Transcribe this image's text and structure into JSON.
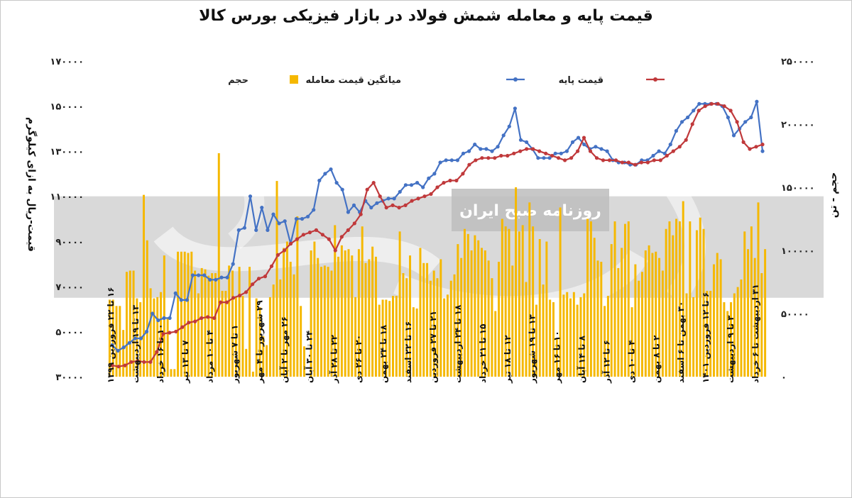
{
  "title": "قیمت پایه و معامله شمش فولاد در بازار فیزیکی بورس کالا",
  "watermark": "روزنامه صبح ایران",
  "colors": {
    "volume": "#F5B800",
    "avg_price": "#4472C4",
    "base_price": "#C0393B",
    "band": "#D9D9D9"
  },
  "chart_data": {
    "type": "bar+line",
    "title": "قیمت پایه و معامله شمش فولاد در بازار فیزیکی بورس کالا",
    "ylabel_left": "قیمت-ریال به ازای کیلوگرم",
    "ylabel_right": "حجم - تن",
    "ylim_left": [
      30000,
      170000
    ],
    "ylim_right": [
      0,
      250000
    ],
    "yticks_left": [
      "۱۷۰۰۰۰",
      "۱۵۰۰۰۰",
      "۱۳۰۰۰۰",
      "۱۱۰۰۰۰",
      "۹۰۰۰۰",
      "۷۰۰۰۰",
      "۵۰۰۰۰",
      "۳۰۰۰۰"
    ],
    "yticks_right": [
      "۲۵۰۰۰۰",
      "۲۰۰۰۰۰",
      "۱۵۰۰۰۰",
      "۱۰۰۰۰۰",
      "۵۰۰۰۰",
      "۰"
    ],
    "legend": {
      "position": "top",
      "items": [
        {
          "name": "قیمت پایه",
          "series": "base"
        },
        {
          "name": "میانگین قیمت معامله",
          "series": "avg"
        },
        {
          "name": "حجم",
          "series": "volume"
        }
      ]
    },
    "x_labels": [
      "۱۶ تا ۲۲ فروردین ۱۳۹۹",
      "۱۳ تا ۱۹ اردیبهشت",
      "۱۰ تا ۱۶ خرداد",
      "۷ تا ۱۳ تیر",
      "۴ تا ۱۰ مرداد",
      "۱ تا ۷ شهریور",
      "۲۹ شهریور تا ۴ مهر",
      "۲۶ مهر تا ۲ آبان",
      "۲۴ تا ۳۰ آبان",
      "۲۲ تا ۲۸ آذر",
      "۲۰ تا ۲۶ دی",
      "۱۸ تا ۲۴ بهمن",
      "۱۶ تا ۲۲ اسفند",
      "۲۱ تا ۲۷ فروردین",
      "۱۸ تا ۲۴ اردیبهشت",
      "۱۵ تا ۲۱ خرداد",
      "۱۲ تا ۱۸ تیر",
      "۱۳ تا ۱۹ شهریور",
      "۱۰ تا ۱۶ مهر",
      "۸ تا ۱۴ آبان",
      "۶ تا ۱۲ آذر",
      "۴ تا ۱۰ دی",
      "۲ تا ۸ بهمن",
      "۳۰ بهمن تا ۶ اسفند",
      "۶ تا ۱۲ فروردین ۱۴۰۱",
      "۳ تا ۹ اردیبهشت",
      "۳۱ اردیبهشت تا ۶ خرداد"
    ],
    "volume": [
      61000,
      61000,
      56000,
      56000,
      37000,
      83000,
      84000,
      84000,
      62000,
      59000,
      144000,
      108000,
      70000,
      62000,
      63000,
      67000,
      96000,
      47000,
      6000,
      6000,
      99000,
      99000,
      99000,
      98000,
      99000,
      84000,
      66000,
      86000,
      85000,
      80000,
      82000,
      82000,
      177000,
      68000,
      68000,
      88000,
      84000,
      63000,
      87000,
      64000,
      22000,
      87000,
      4000,
      62000,
      55000,
      32000,
      25000,
      63000,
      73000,
      155000,
      77000,
      102000,
      107000,
      91000,
      81000,
      127000,
      56000,
      24000,
      0,
      100000,
      107000,
      94000,
      87000,
      88000,
      87000,
      84000,
      120000,
      95000,
      104000,
      100000,
      101000,
      96000,
      63000,
      101000,
      119000,
      90000,
      93000,
      103000,
      95000,
      57000,
      61000,
      61000,
      60000,
      64000,
      64000,
      115000,
      82000,
      78000,
      96000,
      55000,
      54000,
      102000,
      90000,
      90000,
      76000,
      84000,
      78000,
      93000,
      62000,
      65000,
      76000,
      81000,
      105000,
      94000,
      117000,
      113000,
      100000,
      112000,
      108000,
      102000,
      100000,
      92000,
      78000,
      52000,
      91000,
      125000,
      119000,
      117000,
      88000,
      150000,
      115000,
      120000,
      75000,
      138000,
      119000,
      57000,
      109000,
      73000,
      107000,
      61000,
      59000,
      30000,
      134000,
      65000,
      67000,
      62000,
      67000,
      57000,
      63000,
      66000,
      125000,
      123000,
      110000,
      92000,
      91000,
      56000,
      64000,
      105000,
      123000,
      86000,
      102000,
      121000,
      123000,
      55000,
      89000,
      76000,
      83000,
      100000,
      104000,
      98000,
      99000,
      94000,
      84000,
      117000,
      123000,
      112000,
      125000,
      123000,
      139000,
      66000,
      123000,
      63000,
      116000,
      126000,
      117000,
      68000,
      68000,
      89000,
      98000,
      93000,
      59000,
      52000,
      59000,
      66000,
      71000,
      77000,
      115000,
      101000,
      119000,
      94000,
      138000,
      82000,
      101000
    ],
    "avg_price": [
      44000,
      41500,
      43000,
      45000,
      47000,
      47000,
      50000,
      58000,
      55000,
      56000,
      56000,
      67000,
      64000,
      64000,
      75000,
      75000,
      75000,
      73000,
      73000,
      74000,
      74000,
      80000,
      95000,
      96000,
      110000,
      95000,
      105000,
      95000,
      102000,
      98000,
      99000,
      89000,
      100000,
      100000,
      101000,
      104000,
      117000,
      120000,
      122000,
      116000,
      113000,
      103000,
      106000,
      103000,
      108000,
      105000,
      107000,
      108000,
      109000,
      109000,
      112000,
      115000,
      115000,
      116000,
      114000,
      118000,
      120000,
      125000,
      126000,
      126000,
      126000,
      129000,
      130000,
      133000,
      131000,
      131000,
      130000,
      132000,
      137000,
      141000,
      149000,
      135000,
      134000,
      131000,
      127000,
      127000,
      127000,
      129000,
      129000,
      130000,
      134000,
      136000,
      133000,
      131000,
      132000,
      131000,
      130000,
      126000,
      125000,
      125000,
      124000,
      124000,
      126000,
      126000,
      128000,
      130000,
      129000,
      133000,
      139000,
      143000,
      145000,
      148000,
      151000,
      151000,
      151000,
      151000,
      150000,
      145000,
      137000,
      140000,
      143000,
      145000,
      152000,
      130000
    ],
    "base_price": [
      35000,
      34500,
      35000,
      36500,
      37000,
      36500,
      36500,
      41000,
      49000,
      49500,
      50000,
      52000,
      54000,
      54500,
      56000,
      56500,
      56000,
      63000,
      63000,
      65000,
      66000,
      67500,
      71000,
      73500,
      74500,
      79000,
      84000,
      86000,
      89000,
      91000,
      93000,
      94000,
      95000,
      93000,
      91000,
      86000,
      92000,
      95000,
      98000,
      102000,
      113000,
      116000,
      110000,
      105000,
      106000,
      105000,
      106000,
      108000,
      109000,
      110000,
      111000,
      114000,
      116000,
      117000,
      117000,
      120000,
      124000,
      126000,
      127000,
      127000,
      127000,
      128000,
      128000,
      129000,
      130000,
      131000,
      131000,
      130000,
      129000,
      128000,
      127000,
      126000,
      127000,
      130000,
      136000,
      130000,
      127000,
      126000,
      126000,
      126000,
      125000,
      125000,
      124000,
      125000,
      125000,
      126000,
      126000,
      128000,
      130000,
      132000,
      135000,
      142000,
      148000,
      150000,
      151000,
      151000,
      150000,
      148000,
      143000,
      134000,
      131000,
      132000,
      133000
    ]
  }
}
